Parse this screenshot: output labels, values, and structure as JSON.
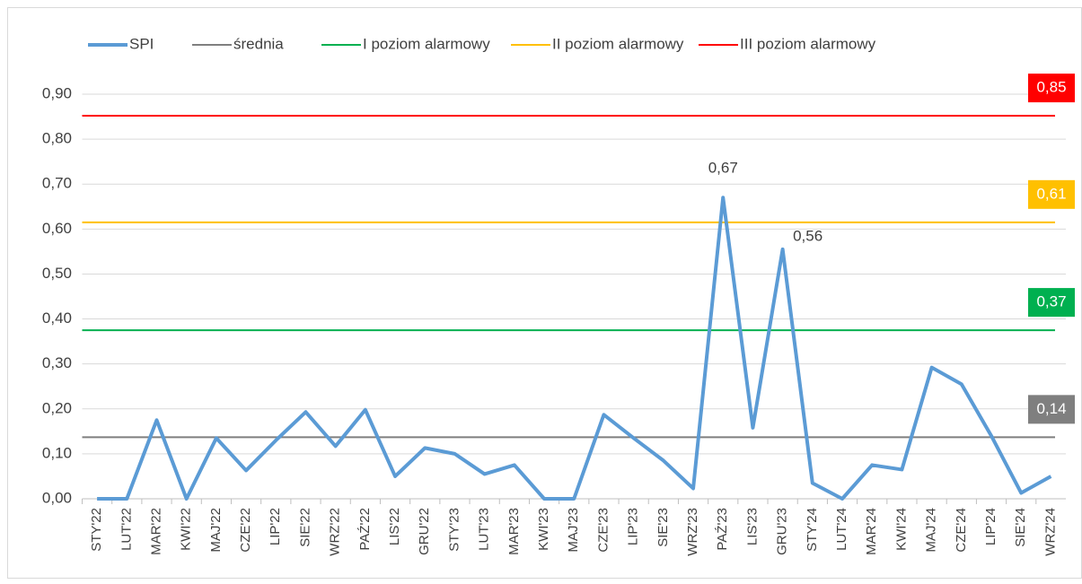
{
  "chart_data": {
    "type": "line",
    "categories": [
      "STY'22",
      "LUT'22",
      "MAR'22",
      "KWI'22",
      "MAJ'22",
      "CZE'22",
      "LIP'22",
      "SIE'22",
      "WRZ'22",
      "PAŹ'22",
      "LIS'22",
      "GRU'22",
      "STY'23",
      "LUT'23",
      "MAR'23",
      "KWI'23",
      "MAJ'23",
      "CZE'23",
      "LIP'23",
      "SIE'23",
      "WRZ'23",
      "PAŹ'23",
      "LIS'23",
      "GRU'23",
      "STY'24",
      "LUT'24",
      "MAR'24",
      "KWI'24",
      "MAJ'24",
      "CZE'24",
      "LIP'24",
      "SIE'24",
      "WRZ'24"
    ],
    "series": [
      {
        "name": "SPI",
        "color": "#5b9bd5",
        "values": [
          0,
          0,
          0.175,
          0,
          0.135,
          0.063,
          0.13,
          0.193,
          0.117,
          0.198,
          0.05,
          0.113,
          0.1,
          0.055,
          0.075,
          0,
          0,
          0.187,
          0.135,
          0.085,
          0.023,
          0.67,
          0.158,
          0.555,
          0.035,
          0,
          0.075,
          0.065,
          0.292,
          0.255,
          0.14,
          0.013,
          0.05
        ],
        "value_labels": [
          null,
          null,
          null,
          null,
          null,
          null,
          null,
          null,
          null,
          null,
          null,
          null,
          null,
          null,
          null,
          null,
          null,
          null,
          null,
          null,
          null,
          "0,67",
          null,
          "0,56",
          null,
          null,
          null,
          null,
          null,
          null,
          null,
          null,
          null
        ]
      },
      {
        "name": "średnia",
        "color": "#7f7f7f",
        "value": 0.137,
        "value_label": "0,14"
      },
      {
        "name": "I poziom alarmowy",
        "color": "#00b050",
        "value": 0.375,
        "value_label": "0,37"
      },
      {
        "name": "II poziom alarmowy",
        "color": "#ffc000",
        "value": 0.615,
        "value_label": "0,61"
      },
      {
        "name": "III poziom alarmowy",
        "color": "#ff0000",
        "value": 0.852,
        "value_label": "0,85"
      }
    ],
    "ylim": [
      0,
      0.9
    ],
    "yticks": [
      {
        "value": 0,
        "label": "0,00"
      },
      {
        "value": 0.1,
        "label": "0,10"
      },
      {
        "value": 0.2,
        "label": "0,20"
      },
      {
        "value": 0.3,
        "label": "0,30"
      },
      {
        "value": 0.4,
        "label": "0,40"
      },
      {
        "value": 0.5,
        "label": "0,50"
      },
      {
        "value": 0.6,
        "label": "0,60"
      },
      {
        "value": 0.7,
        "label": "0,70"
      },
      {
        "value": 0.8,
        "label": "0,80"
      },
      {
        "value": 0.9,
        "label": "0,90"
      }
    ],
    "grid": true,
    "legend": "top"
  }
}
